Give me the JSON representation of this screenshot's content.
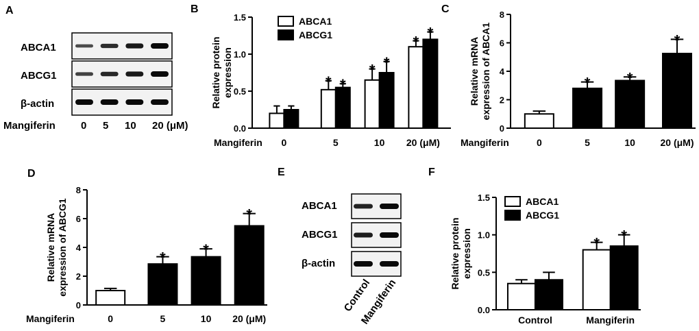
{
  "panels": {
    "A": "A",
    "B": "B",
    "C": "C",
    "D": "D",
    "E": "E",
    "F": "F"
  },
  "blot_A": {
    "rows": [
      "ABCA1",
      "ABCG1",
      "β-actin"
    ],
    "treatment_label": "Mangiferin",
    "doses": [
      "0",
      "5",
      "10",
      "20 (μM)"
    ],
    "intensity": [
      [
        0.35,
        0.65,
        0.85,
        1.0
      ],
      [
        0.45,
        0.7,
        0.85,
        1.0
      ],
      [
        1.0,
        1.0,
        1.0,
        1.0
      ]
    ]
  },
  "blot_E": {
    "rows": [
      "ABCA1",
      "ABCG1",
      "β-actin"
    ],
    "lanes": [
      "Control",
      "Mangiferin"
    ],
    "intensity": [
      [
        0.75,
        1.0
      ],
      [
        0.8,
        1.0
      ],
      [
        1.0,
        1.0
      ]
    ]
  },
  "chart_data": [
    {
      "panel": "B",
      "type": "bar",
      "ylabel": [
        "Relative protein",
        "expression"
      ],
      "xlabel": "Mangiferin",
      "categories": [
        "0",
        "5",
        "10",
        "20 (μM)"
      ],
      "ylim": [
        0,
        1.5
      ],
      "yticks": [
        "0.0",
        "0.5",
        "1.0",
        "1.5"
      ],
      "series": [
        {
          "name": "ABCA1",
          "fill": "#ffffff",
          "values": [
            0.2,
            0.52,
            0.65,
            1.1
          ],
          "errors": [
            0.1,
            0.12,
            0.15,
            0.08
          ],
          "sig": [
            "",
            "*",
            "*",
            "*"
          ]
        },
        {
          "name": "ABCG1",
          "fill": "#000000",
          "values": [
            0.25,
            0.55,
            0.75,
            1.2
          ],
          "errors": [
            0.05,
            0.05,
            0.15,
            0.1
          ],
          "sig": [
            "",
            "*",
            "*",
            "*"
          ]
        }
      ]
    },
    {
      "panel": "C",
      "type": "bar",
      "ylabel": [
        "Relative mRNA",
        "expression of ABCA1"
      ],
      "xlabel": "Mangiferin",
      "categories": [
        "0",
        "5",
        "10",
        "20 (μM)"
      ],
      "ylim": [
        0,
        8
      ],
      "yticks": [
        "0",
        "2",
        "4",
        "6",
        "8"
      ],
      "series": [
        {
          "name": "ABCA1 mRNA",
          "fills": [
            "#ffffff",
            "#000000",
            "#000000",
            "#000000"
          ],
          "values": [
            1.0,
            2.8,
            3.35,
            5.25
          ],
          "errors": [
            0.2,
            0.45,
            0.25,
            1.0
          ],
          "sig": [
            "",
            "*",
            "*",
            "*"
          ]
        }
      ]
    },
    {
      "panel": "D",
      "type": "bar",
      "ylabel": [
        "Relative mRNA",
        "expression of ABCG1"
      ],
      "xlabel": "Mangiferin",
      "categories": [
        "0",
        "5",
        "10",
        "20 (μM)"
      ],
      "ylim": [
        0,
        8
      ],
      "yticks": [
        "0",
        "2",
        "4",
        "6",
        "8"
      ],
      "series": [
        {
          "name": "ABCG1 mRNA",
          "fills": [
            "#ffffff",
            "#000000",
            "#000000",
            "#000000"
          ],
          "values": [
            1.0,
            2.85,
            3.35,
            5.5
          ],
          "errors": [
            0.15,
            0.5,
            0.55,
            0.85
          ],
          "sig": [
            "",
            "*",
            "*",
            "*"
          ]
        }
      ]
    },
    {
      "panel": "F",
      "type": "bar",
      "ylabel": [
        "Relative protein",
        "expression"
      ],
      "xlabel": "",
      "categories": [
        "Control",
        "Mangiferin"
      ],
      "ylim": [
        0,
        1.5
      ],
      "yticks": [
        "0.0",
        "0.5",
        "1.0",
        "1.5"
      ],
      "series": [
        {
          "name": "ABCA1",
          "fill": "#ffffff",
          "values": [
            0.35,
            0.8
          ],
          "errors": [
            0.05,
            0.1
          ],
          "sig": [
            "",
            "*"
          ]
        },
        {
          "name": "ABCG1",
          "fill": "#000000",
          "values": [
            0.4,
            0.85
          ],
          "errors": [
            0.1,
            0.15
          ],
          "sig": [
            "",
            "*"
          ]
        }
      ]
    }
  ]
}
